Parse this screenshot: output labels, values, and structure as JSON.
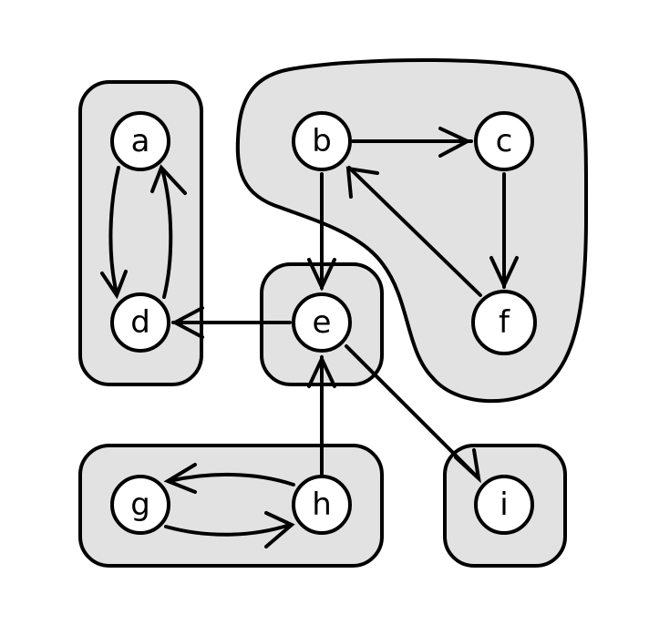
{
  "diagram": {
    "nodes": [
      {
        "id": "a",
        "label": "a"
      },
      {
        "id": "b",
        "label": "b"
      },
      {
        "id": "c",
        "label": "c"
      },
      {
        "id": "d",
        "label": "d"
      },
      {
        "id": "e",
        "label": "e"
      },
      {
        "id": "f",
        "label": "f"
      },
      {
        "id": "g",
        "label": "g"
      },
      {
        "id": "h",
        "label": "h"
      },
      {
        "id": "i",
        "label": "i"
      }
    ],
    "edges": [
      {
        "from": "a",
        "to": "d"
      },
      {
        "from": "d",
        "to": "a"
      },
      {
        "from": "b",
        "to": "c"
      },
      {
        "from": "c",
        "to": "f"
      },
      {
        "from": "f",
        "to": "b"
      },
      {
        "from": "b",
        "to": "e"
      },
      {
        "from": "e",
        "to": "d"
      },
      {
        "from": "e",
        "to": "i"
      },
      {
        "from": "h",
        "to": "e"
      },
      {
        "from": "h",
        "to": "g"
      },
      {
        "from": "g",
        "to": "h"
      }
    ],
    "groups": [
      {
        "id": "ad",
        "members": [
          "a",
          "d"
        ]
      },
      {
        "id": "bcf",
        "members": [
          "b",
          "c",
          "f"
        ]
      },
      {
        "id": "e",
        "members": [
          "e"
        ]
      },
      {
        "id": "gh",
        "members": [
          "g",
          "h"
        ]
      },
      {
        "id": "i",
        "members": [
          "i"
        ]
      }
    ],
    "colors": {
      "group_fill": "#e2e2e2",
      "node_fill": "#ffffff",
      "stroke": "#000000"
    }
  }
}
